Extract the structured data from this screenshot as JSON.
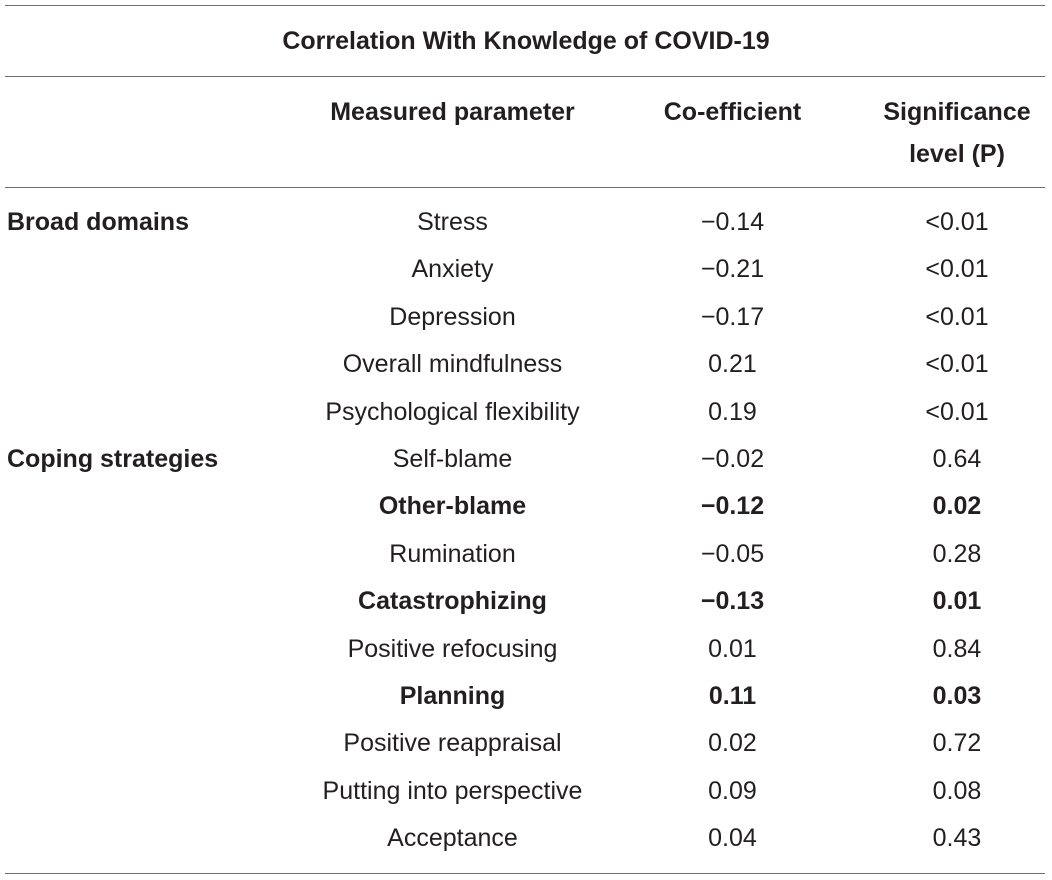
{
  "table": {
    "caption": "Correlation With Knowledge of COVID-19",
    "headers": {
      "parameter": "Measured parameter",
      "coefficient": "Co-efficient",
      "significance_line1": "Significance",
      "significance_line2": "level (P)"
    },
    "rows": [
      {
        "group": "Broad domains",
        "parameter": "Stress",
        "coefficient": "−0.14",
        "significance": "<0.01",
        "bold": false
      },
      {
        "group": "",
        "parameter": "Anxiety",
        "coefficient": "−0.21",
        "significance": "<0.01",
        "bold": false
      },
      {
        "group": "",
        "parameter": "Depression",
        "coefficient": "−0.17",
        "significance": "<0.01",
        "bold": false
      },
      {
        "group": "",
        "parameter": "Overall mindfulness",
        "coefficient": "0.21",
        "significance": "<0.01",
        "bold": false
      },
      {
        "group": "",
        "parameter": "Psychological flexibility",
        "coefficient": "0.19",
        "significance": "<0.01",
        "bold": false
      },
      {
        "group": "Coping strategies",
        "parameter": "Self-blame",
        "coefficient": "−0.02",
        "significance": "0.64",
        "bold": false
      },
      {
        "group": "",
        "parameter": "Other-blame",
        "coefficient": "−0.12",
        "significance": "0.02",
        "bold": true
      },
      {
        "group": "",
        "parameter": "Rumination",
        "coefficient": "−0.05",
        "significance": "0.28",
        "bold": false
      },
      {
        "group": "",
        "parameter": "Catastrophizing",
        "coefficient": "−0.13",
        "significance": "0.01",
        "bold": true
      },
      {
        "group": "",
        "parameter": "Positive refocusing",
        "coefficient": "0.01",
        "significance": "0.84",
        "bold": false
      },
      {
        "group": "",
        "parameter": "Planning",
        "coefficient": "0.11",
        "significance": "0.03",
        "bold": true
      },
      {
        "group": "",
        "parameter": "Positive reappraisal",
        "coefficient": "0.02",
        "significance": "0.72",
        "bold": false
      },
      {
        "group": "",
        "parameter": "Putting into perspective",
        "coefficient": "0.09",
        "significance": "0.08",
        "bold": false
      },
      {
        "group": "",
        "parameter": "Acceptance",
        "coefficient": "0.04",
        "significance": "0.43",
        "bold": false
      }
    ]
  }
}
